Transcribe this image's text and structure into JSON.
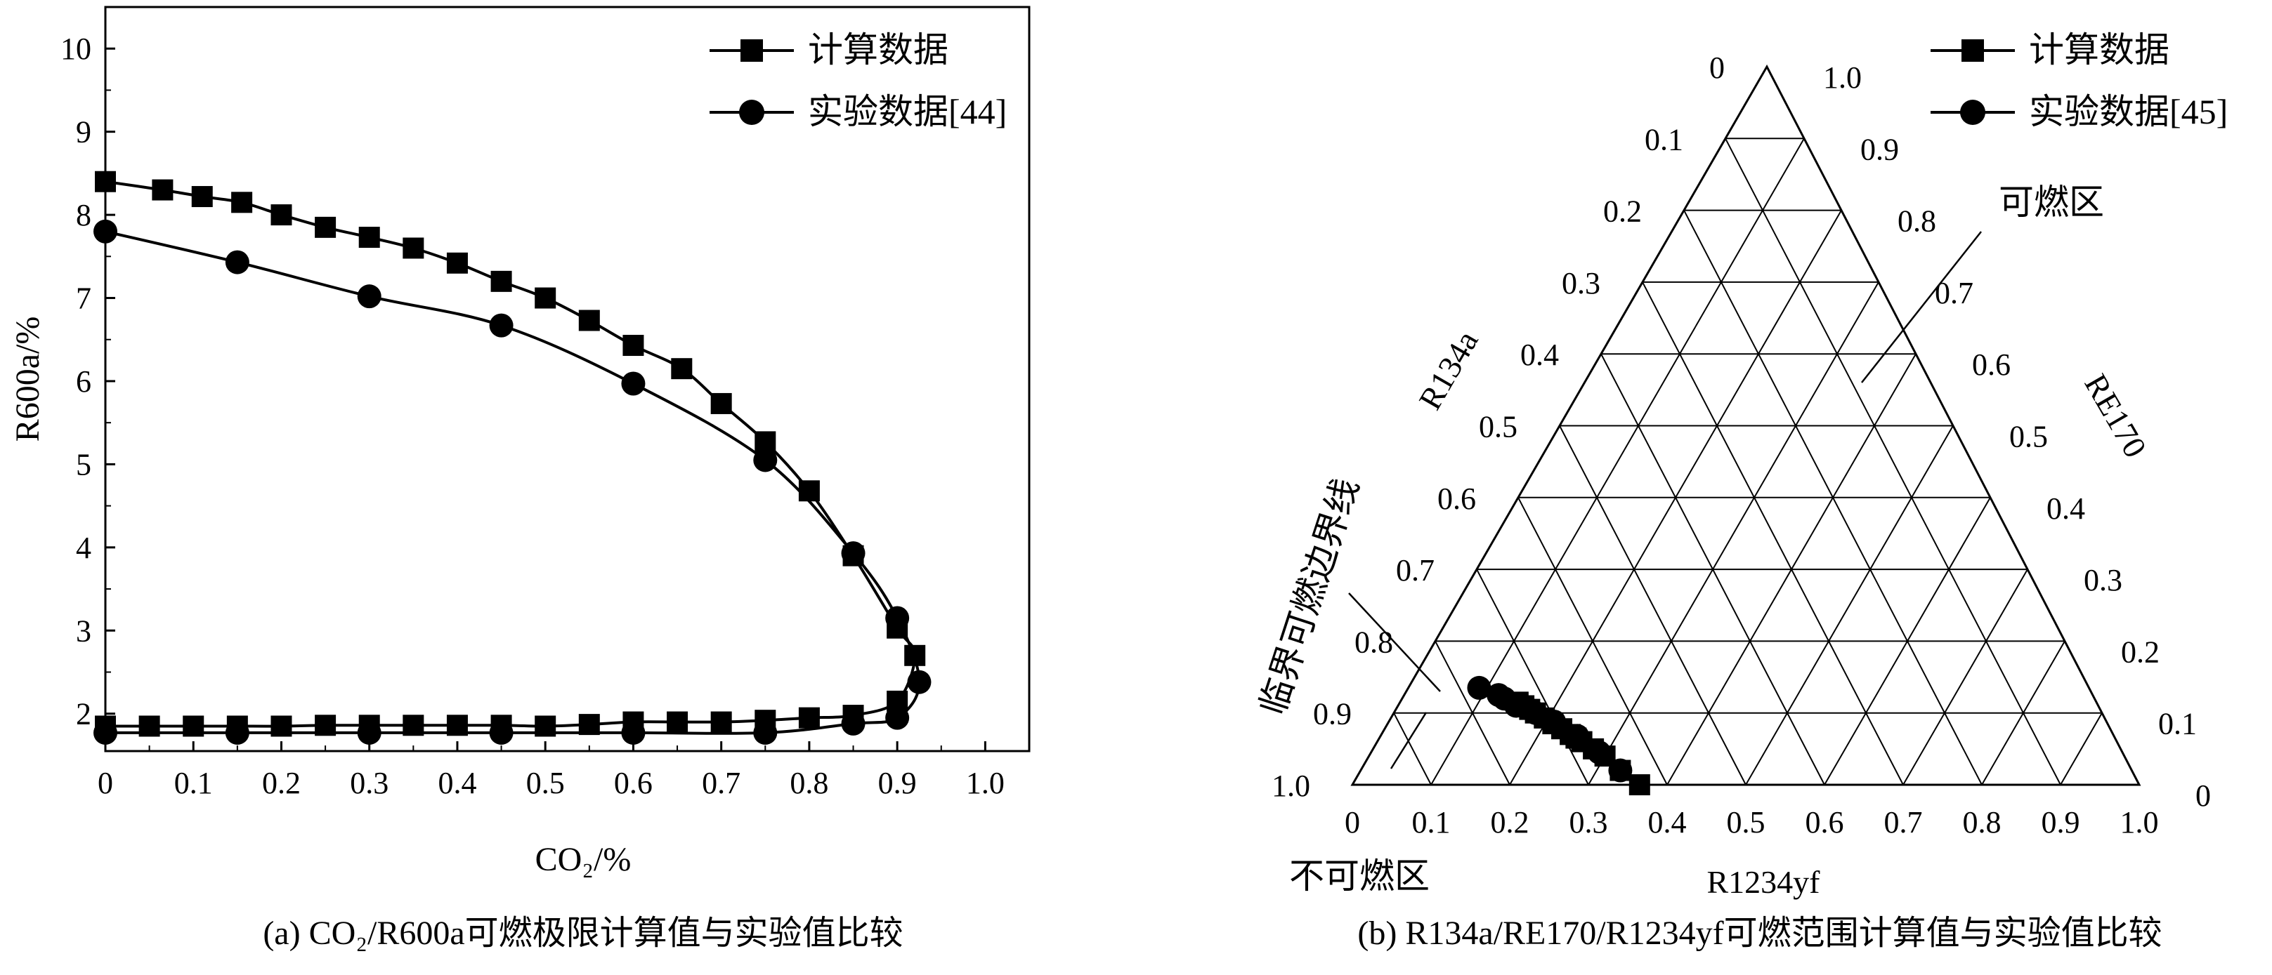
{
  "chart_data": [
    {
      "type": "line",
      "caption": "(a) CO₂/R600a可燃极限计算值与实验值比较",
      "xlabel": "CO₂/%",
      "ylabel": "R600a/%",
      "xlim": [
        0,
        1.05
      ],
      "ylim": [
        1.55,
        10.5
      ],
      "xticks": [
        "0",
        "0.1",
        "0.2",
        "0.3",
        "0.4",
        "0.5",
        "0.6",
        "0.7",
        "0.8",
        "0.9",
        "1.0"
      ],
      "yticks": [
        "2",
        "3",
        "4",
        "5",
        "6",
        "7",
        "8",
        "9",
        "10"
      ],
      "legend_position": "top-right",
      "series": [
        {
          "name": "计算数据",
          "marker": "square",
          "points": [
            [
              0,
              8.4
            ],
            [
              0.065,
              8.3
            ],
            [
              0.11,
              8.22
            ],
            [
              0.155,
              8.15
            ],
            [
              0.2,
              8.0
            ],
            [
              0.25,
              7.85
            ],
            [
              0.3,
              7.73
            ],
            [
              0.35,
              7.6
            ],
            [
              0.4,
              7.42
            ],
            [
              0.45,
              7.2
            ],
            [
              0.5,
              7.0
            ],
            [
              0.55,
              6.73
            ],
            [
              0.6,
              6.43
            ],
            [
              0.655,
              6.15
            ],
            [
              0.7,
              5.73
            ],
            [
              0.75,
              5.27
            ],
            [
              0.8,
              4.68
            ],
            [
              0.85,
              3.9
            ],
            [
              0.9,
              3.03
            ],
            [
              0.92,
              2.7
            ],
            [
              0.9,
              2.15
            ],
            [
              0.85,
              1.98
            ],
            [
              0.8,
              1.95
            ],
            [
              0.75,
              1.92
            ],
            [
              0.7,
              1.9
            ],
            [
              0.65,
              1.9
            ],
            [
              0.6,
              1.9
            ],
            [
              0.55,
              1.87
            ],
            [
              0.5,
              1.85
            ],
            [
              0.45,
              1.86
            ],
            [
              0.4,
              1.86
            ],
            [
              0.35,
              1.86
            ],
            [
              0.3,
              1.86
            ],
            [
              0.25,
              1.86
            ],
            [
              0.2,
              1.85
            ],
            [
              0.15,
              1.85
            ],
            [
              0.1,
              1.85
            ],
            [
              0.05,
              1.85
            ],
            [
              0,
              1.85
            ]
          ]
        },
        {
          "name": "实验数据[44]",
          "marker": "circle",
          "points": [
            [
              0,
              7.8
            ],
            [
              0.15,
              7.43
            ],
            [
              0.3,
              7.02
            ],
            [
              0.45,
              6.67
            ],
            [
              0.6,
              5.97
            ],
            [
              0.75,
              5.05
            ],
            [
              0.85,
              3.93
            ],
            [
              0.9,
              3.15
            ],
            [
              0.925,
              2.38
            ],
            [
              0.9,
              1.95
            ],
            [
              0.85,
              1.88
            ],
            [
              0.75,
              1.77
            ],
            [
              0.6,
              1.77
            ],
            [
              0.45,
              1.77
            ],
            [
              0.3,
              1.77
            ],
            [
              0.15,
              1.77
            ],
            [
              0,
              1.77
            ]
          ]
        }
      ]
    },
    {
      "type": "ternary",
      "caption": "(b) R134a/RE170/R1234yf可燃范围计算值与实验值比较",
      "axes": {
        "left": "R134a",
        "right": "RE170",
        "bottom": "R1234yf"
      },
      "ticks": [
        "0",
        "0.1",
        "0.2",
        "0.3",
        "0.4",
        "0.5",
        "0.6",
        "0.7",
        "0.8",
        "0.9",
        "1.0"
      ],
      "grid_divisions": 10,
      "legend_position": "top-right",
      "annotations": [
        "可燃区",
        "临界可燃边界线",
        "不可燃区"
      ],
      "series": [
        {
          "name": "计算数据",
          "marker": "square",
          "points_yf_re": [
            [
              0.365,
              0.0
            ],
            [
              0.33,
              0.02
            ],
            [
              0.3,
              0.04
            ],
            [
              0.28,
              0.05
            ],
            [
              0.26,
              0.06
            ],
            [
              0.25,
              0.065
            ],
            [
              0.24,
              0.07
            ],
            [
              0.225,
              0.078
            ],
            [
              0.21,
              0.085
            ],
            [
              0.195,
              0.093
            ],
            [
              0.18,
              0.1
            ],
            [
              0.17,
              0.105
            ],
            [
              0.16,
              0.11
            ],
            [
              0.15,
              0.115
            ]
          ]
        },
        {
          "name": "实验数据[45]",
          "marker": "circle",
          "points_yf_re": [
            [
              0.09,
              0.135
            ],
            [
              0.12,
              0.125
            ],
            [
              0.13,
              0.12
            ],
            [
              0.15,
              0.11
            ],
            [
              0.18,
              0.1
            ],
            [
              0.21,
              0.088
            ],
            [
              0.25,
              0.068
            ],
            [
              0.29,
              0.045
            ],
            [
              0.33,
              0.02
            ]
          ]
        }
      ]
    }
  ]
}
